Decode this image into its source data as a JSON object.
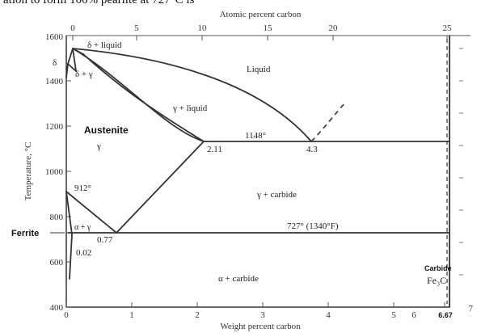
{
  "header_text": "ation to form 100% pearlite at 727°C is",
  "diagram": {
    "top_axis": {
      "title": "Atomic percent carbon",
      "ticks": [
        "0",
        "5",
        "10",
        "15",
        "20",
        "25"
      ]
    },
    "bottom_axis": {
      "title": "Weight percent carbon",
      "ticks": [
        "0",
        "1",
        "2",
        "3",
        "4",
        "5",
        "6",
        "6.67",
        "7"
      ]
    },
    "left_axis": {
      "title": "Temperature, °C",
      "ticks": [
        "1600",
        "1400",
        "1200",
        "1000",
        "800",
        "600",
        "400"
      ]
    },
    "labels": {
      "delta_liquid": "δ + liquid",
      "delta": "δ",
      "delta_gamma": "δ + γ",
      "liquid": "Liquid",
      "austenite": "Austenite",
      "gamma": "γ",
      "gamma_liquid": "γ + liquid",
      "t1148": "1148°",
      "c211": "2.11",
      "c43": "4.3",
      "t912": "912°",
      "gamma_carbide": "γ + carbide",
      "t727": "727° (1340°F)",
      "ferrite": "Ferrite",
      "alpha_gamma": "α + γ",
      "c077": "0.77",
      "c002": "0.02",
      "alpha_carbide": "α + carbide",
      "carbide": "Carbide",
      "fe3c": "Fe₃C"
    }
  }
}
